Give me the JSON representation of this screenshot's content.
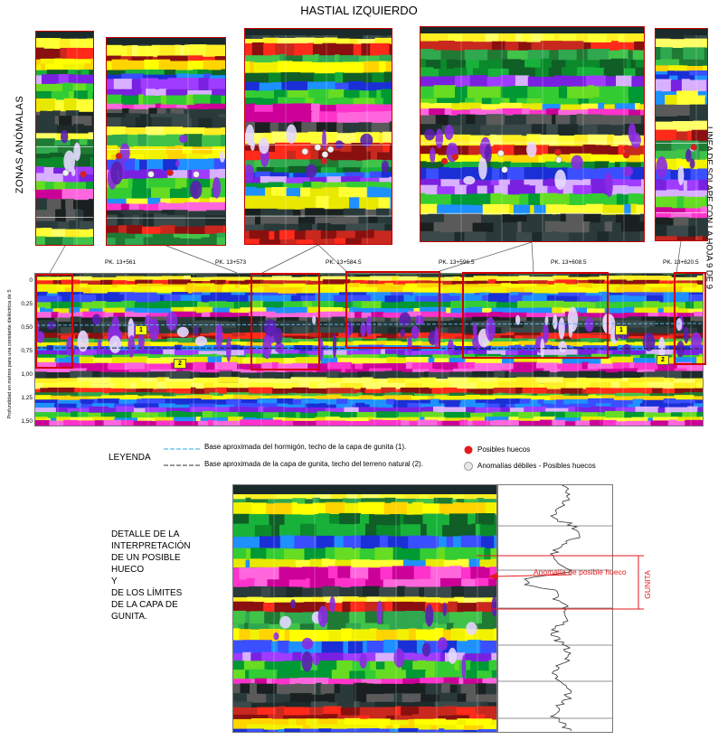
{
  "title": "HASTIAL IZQUIERDO",
  "left_vertical_label": "ZONAS ANÓMALAS",
  "right_vertical_label": "LINEA DE SOLAPE CON LA HOJA 9 DE 9",
  "pk_labels": [
    "PK. 13+561",
    "PK. 13+573",
    "PK. 13+584.5",
    "PK. 13+596.5",
    "PK. 13+608.5",
    "PK. 13+620.5"
  ],
  "y_axis": {
    "label": "Profundidad en metros para una constante dieléctrica de 5",
    "ticks": [
      "0",
      "0,25",
      "0,50",
      "0,75",
      "1,00",
      "1,25",
      "1,50"
    ]
  },
  "interface_badges": [
    "1",
    "2",
    "1",
    "2"
  ],
  "legend": {
    "title": "LEYENDA",
    "line1": "Base aproximada del hormigón, techo de la capa de gunita (1).",
    "line2": "Base aproximada de la capa de gunita, techo del terreno natural (2).",
    "dot1": "Posibles huecos",
    "dot2": "Anomalías débiles - Posibles huecos",
    "colors": {
      "line1": "#29a9e0",
      "line2": "#333333",
      "dot1": "#e31a1c",
      "dot2": "#e0e0e0"
    }
  },
  "detail": {
    "lines": [
      "DETALLE DE LA",
      "INTERPRETACIÓN",
      "DE UN POSIBLE",
      "HUECO",
      "Y",
      "DE LOS LÍMITES",
      "DE LA CAPA DE",
      "GUNITA."
    ],
    "anomaly_label": "Anomalía de posible hueco",
    "gunita_label": "GUNITA"
  },
  "colors": {
    "highlight": "#c00000",
    "annotation": "#e31a1c"
  }
}
